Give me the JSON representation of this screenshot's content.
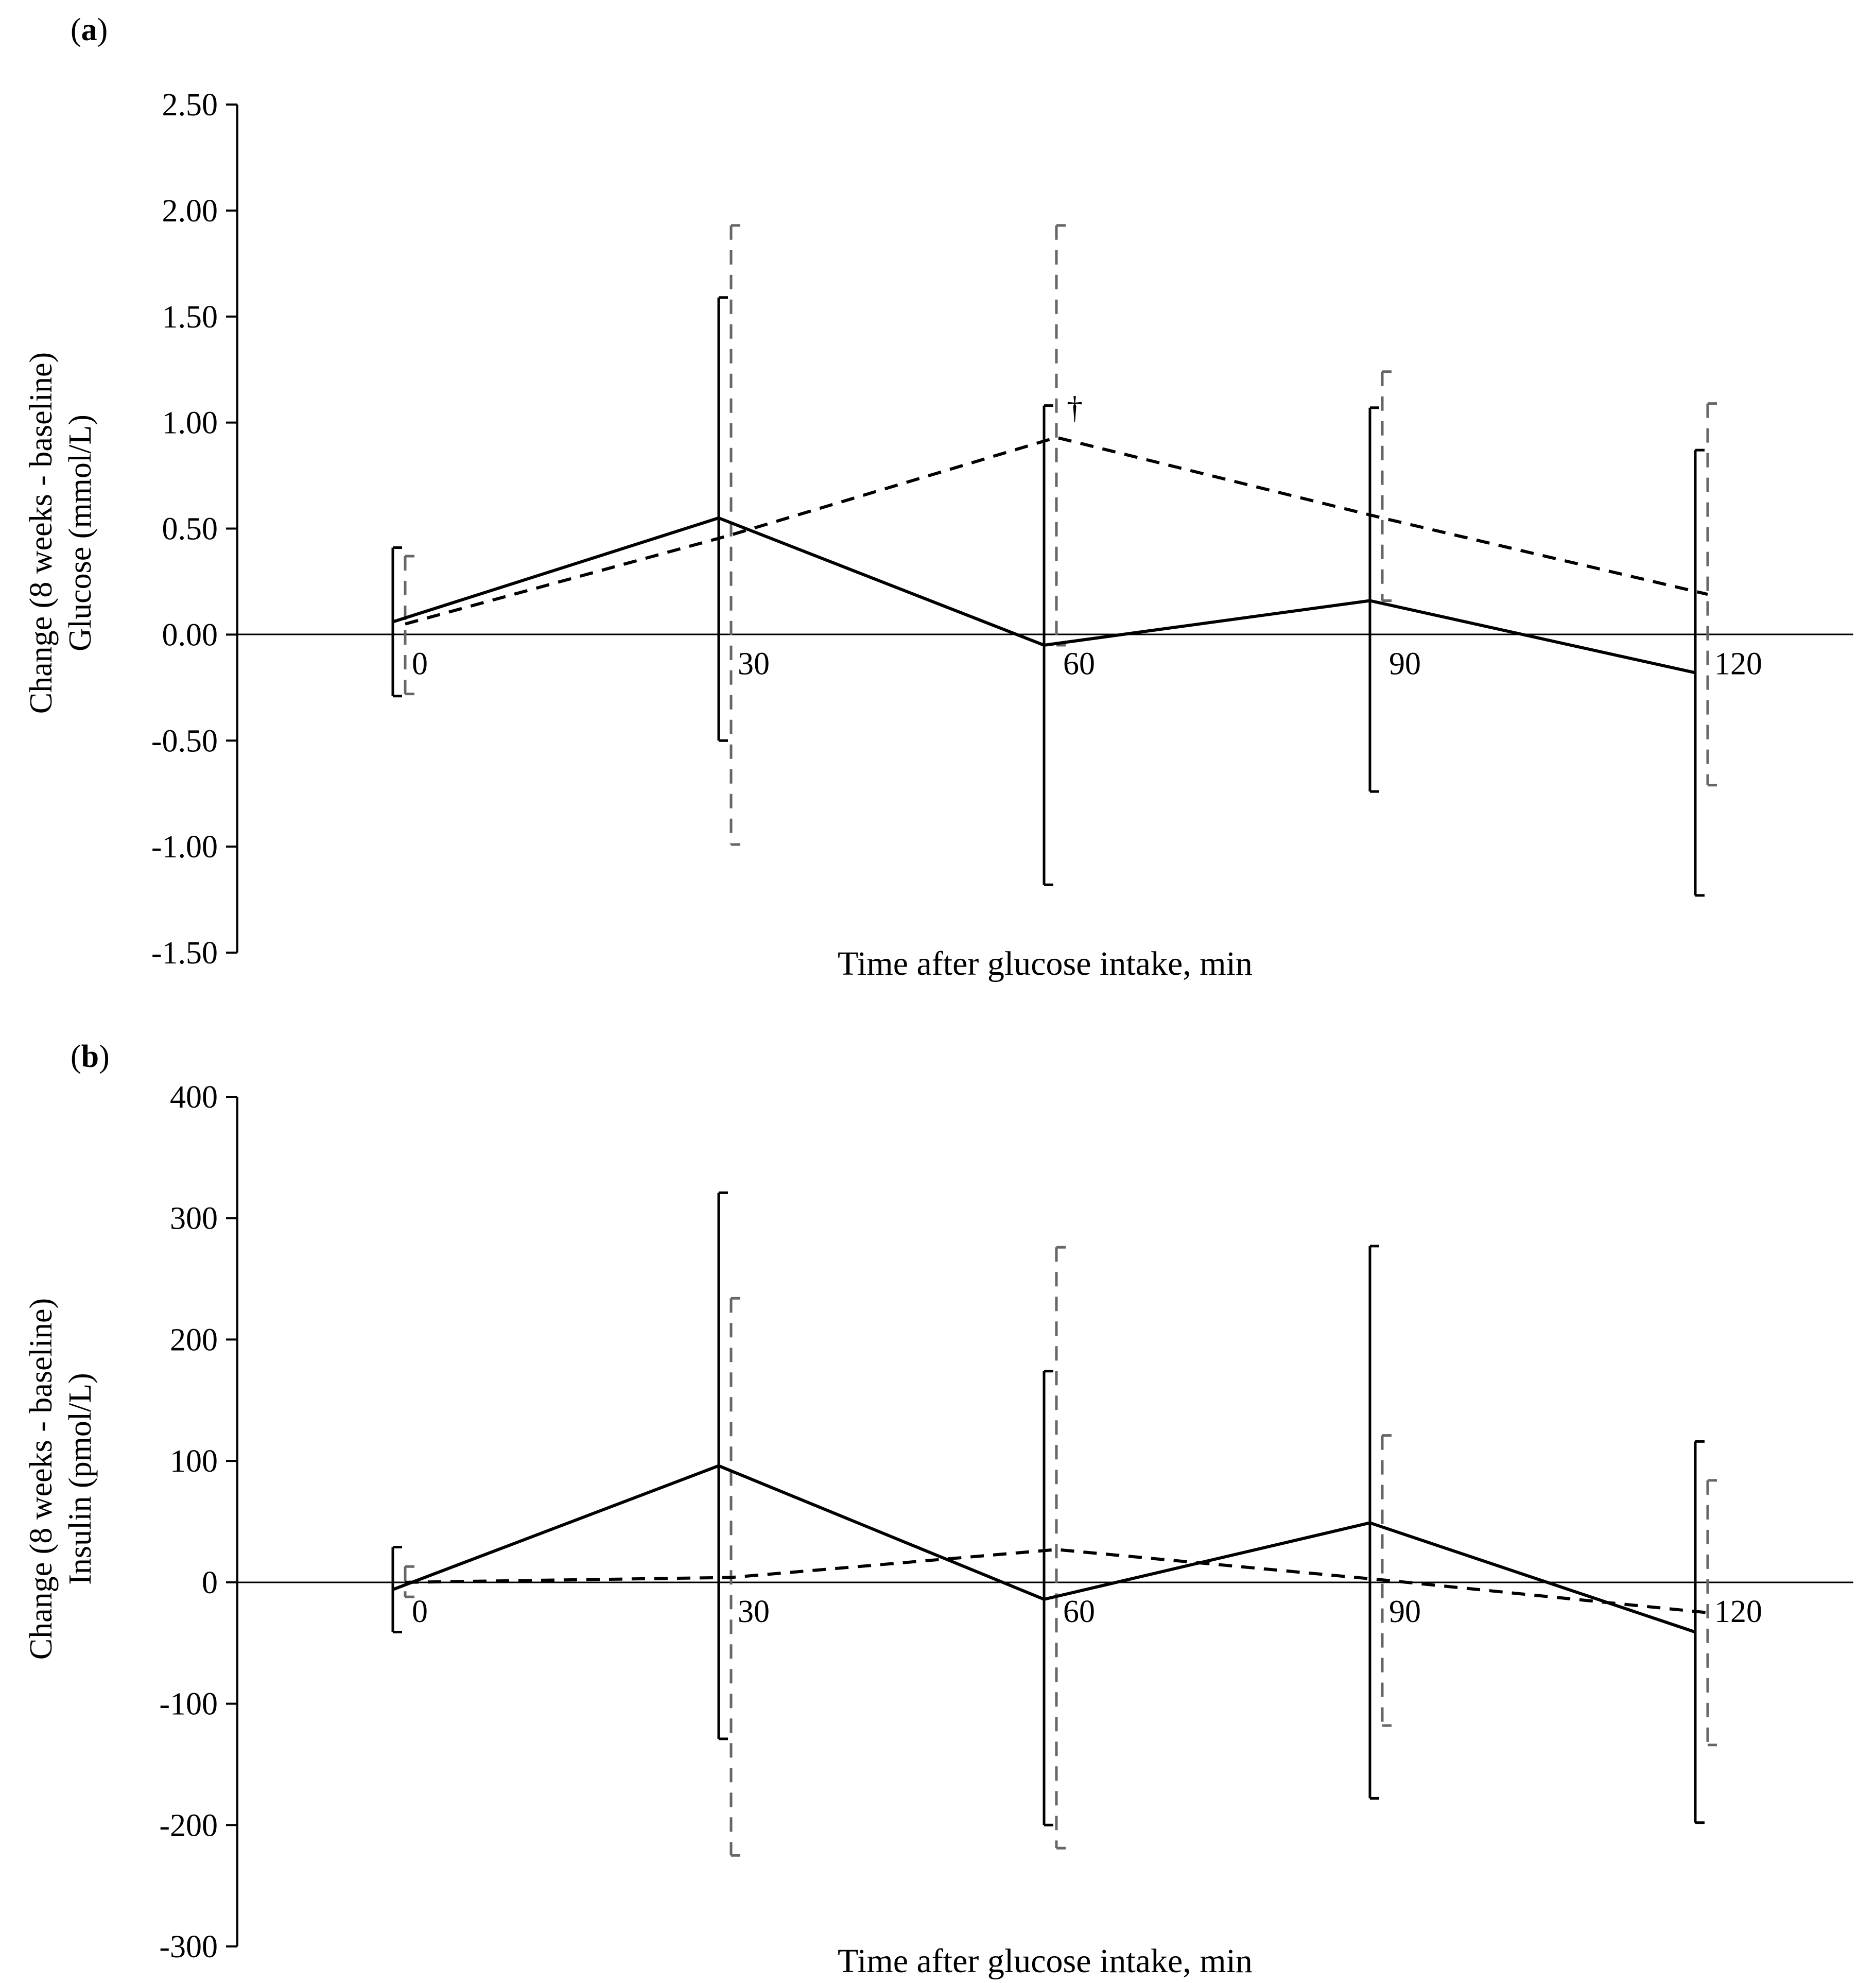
{
  "chart_data": [
    {
      "type": "line",
      "panel_label": "a",
      "title": "",
      "xlabel": "Time after glucose intake, min",
      "ylabel_lines": [
        "Change (8 weeks - baseline)",
        "Glucose (mmol/L)"
      ],
      "x": [
        0,
        30,
        60,
        90,
        120
      ],
      "x_tick_labels": [
        "0",
        "30",
        "60",
        "90",
        "120"
      ],
      "ylim": [
        -1.5,
        2.5
      ],
      "y_ticks": [
        2.5,
        2.0,
        1.5,
        1.0,
        0.5,
        0.0,
        -0.5,
        -1.0,
        -1.5
      ],
      "y_tick_labels": [
        "2.50",
        "2.00",
        "1.50",
        "1.00",
        "0.50",
        "0.00",
        "-0.50",
        "-1.00",
        "-1.50"
      ],
      "grid": false,
      "legend": "none",
      "series": [
        {
          "name": "solid",
          "style": "solid",
          "color": "#000000",
          "values": [
            0.06,
            0.55,
            -0.05,
            0.16,
            -0.18
          ],
          "err_low": [
            -0.29,
            -0.5,
            -1.18,
            -0.74,
            -1.23
          ],
          "err_high": [
            0.41,
            1.59,
            1.08,
            1.07,
            0.87
          ]
        },
        {
          "name": "dashed",
          "style": "dashed",
          "color": "#000000",
          "err_color": "#666666",
          "values": [
            0.05,
            0.47,
            0.93,
            0.55,
            0.19
          ],
          "err_low": [
            -0.28,
            -0.99,
            -0.05,
            0.16,
            -0.71
          ],
          "err_high": [
            0.37,
            1.93,
            1.93,
            1.24,
            1.09
          ]
        }
      ],
      "annotations": [
        {
          "text": "†",
          "x": 60,
          "y": 1.02
        }
      ]
    },
    {
      "type": "line",
      "panel_label": "b",
      "title": "",
      "xlabel": "Time after glucose intake, min",
      "ylabel_lines": [
        "Change (8 weeks - baseline)",
        "Insulin (pmol/L)"
      ],
      "x": [
        0,
        30,
        60,
        90,
        120
      ],
      "x_tick_labels": [
        "0",
        "30",
        "60",
        "90",
        "120"
      ],
      "ylim": [
        -300,
        400
      ],
      "y_ticks": [
        400,
        300,
        200,
        100,
        0,
        -100,
        -200,
        -300
      ],
      "y_tick_labels": [
        "400",
        "300",
        "200",
        "100",
        "0",
        "-100",
        "-200",
        "-300"
      ],
      "grid": false,
      "legend": "none",
      "series": [
        {
          "name": "solid",
          "style": "solid",
          "color": "#000000",
          "values": [
            -6,
            96,
            -14,
            49,
            -41
          ],
          "err_low": [
            -41,
            -129,
            -200,
            -178,
            -198
          ],
          "err_high": [
            29,
            321,
            174,
            277,
            116
          ]
        },
        {
          "name": "dashed",
          "style": "dashed",
          "color": "#000000",
          "err_color": "#666666",
          "values": [
            0,
            4,
            27,
            2,
            -25
          ],
          "err_low": [
            -12,
            -225,
            -219,
            -118,
            -134
          ],
          "err_high": [
            13,
            234,
            276,
            121,
            84
          ]
        }
      ],
      "annotations": []
    }
  ]
}
